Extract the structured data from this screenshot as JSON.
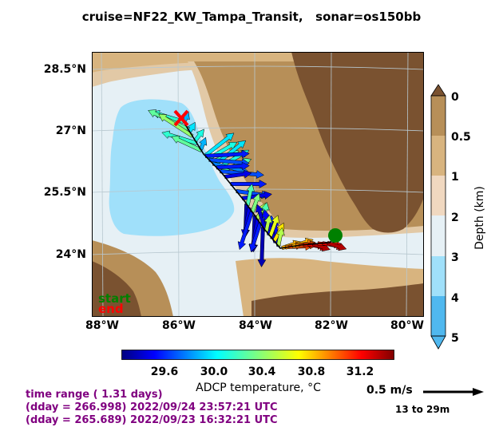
{
  "title": "cruise=NF22_KW_Tampa_Transit,   sonar=os150bb",
  "map": {
    "lat_labels": [
      "28.5°N",
      "27°N",
      "25.5°N",
      "24°N"
    ],
    "lon_labels": [
      "88°W",
      "86°W",
      "84°W",
      "82°W",
      "80°W"
    ],
    "legend_start": "start",
    "legend_end": "end",
    "colors": {
      "land": "#7a5230",
      "ocean_shallow": "#e2c9a6",
      "ocean_deep": "#9fe1fb",
      "track": "#000000",
      "start_marker": "#008000",
      "end_marker": "#ff0000"
    },
    "start_marker": {
      "lon": -81.8,
      "lat": 24.5
    },
    "end_marker": {
      "lon": -86.0,
      "lat": 26.9
    }
  },
  "depth_colorbar": {
    "ticks": [
      "0",
      "0.5",
      "1",
      "2",
      "3",
      "4",
      "5"
    ],
    "label": "Depth (km)",
    "colors": [
      "#7a5230",
      "#b78f58",
      "#d8b47f",
      "#f0d8c0",
      "#e6f0f5",
      "#a0e0fa",
      "#50b8ef"
    ]
  },
  "temperature_colorbar": {
    "ticks": [
      "29.6",
      "30.0",
      "30.4",
      "30.8",
      "31.2"
    ],
    "label": "ADCP temperature, °C",
    "range": [
      29.2,
      31.6
    ],
    "colormap": "jet"
  },
  "info": {
    "line1": "time range ( 1.31 days)",
    "line2": "(dday = 266.998) 2022/09/24 23:57:21 UTC",
    "line3": "(dday = 265.689) 2022/09/23 16:32:21 UTC"
  },
  "scale": {
    "label": "0.5 m/s",
    "depth_range": "13 to 29m"
  }
}
